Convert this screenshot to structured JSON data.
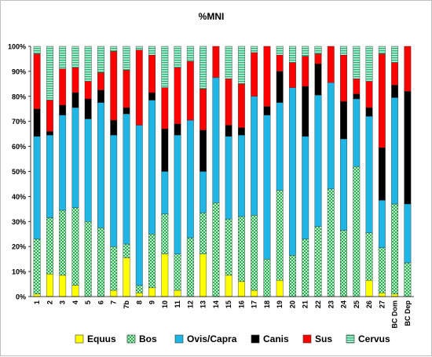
{
  "chart_data": {
    "type": "bar",
    "stacked": true,
    "title": "%MNI",
    "xlabel": "",
    "ylabel": "",
    "ylim": [
      0,
      100
    ],
    "yticks": [
      "0%",
      "10%",
      "20%",
      "30%",
      "40%",
      "50%",
      "60%",
      "70%",
      "80%",
      "90%",
      "100%"
    ],
    "grid": false,
    "legend_position": "bottom",
    "categories": [
      "1",
      "2",
      "3",
      "4",
      "5",
      "6",
      "7",
      "7b",
      "8",
      "9",
      "10",
      "11",
      "12",
      "13",
      "14",
      "15",
      "16",
      "17",
      "18",
      "19",
      "20",
      "21",
      "22",
      "23",
      "24",
      "25",
      "26",
      "27",
      "BC Dom",
      "BC Dep"
    ],
    "series": [
      {
        "name": "Equus",
        "color": "#ffff00",
        "pattern": "solid",
        "values": [
          1,
          9,
          8.5,
          4.5,
          0,
          0,
          2.5,
          15.5,
          1.5,
          3.5,
          17,
          2.5,
          0,
          17,
          0,
          8.5,
          6,
          2.5,
          0,
          6.5,
          0,
          0,
          0,
          0,
          0,
          0,
          6.5,
          1.5,
          1,
          0
        ]
      },
      {
        "name": "Bos",
        "color": "#22b24c",
        "pattern": "checker",
        "values": [
          22,
          22.5,
          26,
          31,
          30,
          27.5,
          17.5,
          5.5,
          3,
          21.5,
          16,
          14.5,
          23.5,
          16.5,
          37.5,
          22.5,
          26,
          30,
          15,
          36,
          16.5,
          23,
          28,
          43,
          26.5,
          52,
          19,
          18,
          36,
          13.5
        ]
      },
      {
        "name": "Ovis/Capra",
        "color": "#1fb6e6",
        "pattern": "solid",
        "values": [
          41,
          33,
          38,
          40,
          41,
          50,
          44.5,
          52,
          64,
          53.5,
          17,
          47.5,
          47,
          16.5,
          50,
          33,
          32.5,
          47.5,
          57.5,
          35,
          67,
          41,
          52.5,
          42.5,
          36.5,
          27,
          46.5,
          19,
          42.5,
          23.5
        ]
      },
      {
        "name": "Canis",
        "color": "#000000",
        "pattern": "solid",
        "values": [
          11,
          1.5,
          4,
          6,
          8,
          5,
          6,
          2.5,
          0,
          3,
          17,
          4.5,
          0,
          16.5,
          0,
          4.5,
          3,
          0,
          3.5,
          12.5,
          0,
          20,
          12.5,
          0,
          15,
          2,
          3.5,
          21,
          5,
          45
        ]
      },
      {
        "name": "Sus",
        "color": "#ff0000",
        "pattern": "solid",
        "values": [
          22,
          12.5,
          14.5,
          10,
          7,
          7,
          27.5,
          15,
          30,
          15,
          16.5,
          22.5,
          23.5,
          16.5,
          12.5,
          18.5,
          17.5,
          17.5,
          24,
          6.5,
          10,
          12,
          4,
          14.5,
          18.5,
          6,
          10.5,
          37.5,
          9,
          18
        ]
      },
      {
        "name": "Cervus",
        "color": "#2ab97d",
        "pattern": "stripes",
        "values": [
          3,
          21.5,
          9,
          8.5,
          14,
          10.5,
          2,
          9.5,
          1.5,
          3.5,
          16.5,
          8.5,
          6,
          17,
          0,
          13,
          15,
          2.5,
          0,
          3.5,
          6.5,
          4,
          3,
          0,
          3.5,
          13,
          14,
          3,
          6.5,
          0
        ]
      }
    ]
  }
}
